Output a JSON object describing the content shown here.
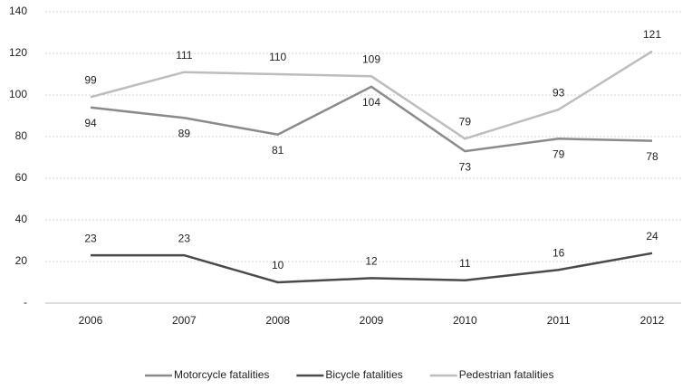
{
  "chart_data": {
    "type": "line",
    "categories": [
      "2006",
      "2007",
      "2008",
      "2009",
      "2010",
      "2011",
      "2012"
    ],
    "series": [
      {
        "name": "Motorcycle fatalities",
        "color": "#8a8a8a",
        "values": [
          94,
          89,
          81,
          104,
          73,
          79,
          78
        ]
      },
      {
        "name": "Bicycle fatalities",
        "color": "#4a4a4a",
        "values": [
          23,
          23,
          10,
          12,
          11,
          16,
          24
        ]
      },
      {
        "name": "Pedestrian fatalities",
        "color": "#bdbdbd",
        "values": [
          99,
          111,
          110,
          109,
          79,
          93,
          121
        ]
      }
    ],
    "ylim": [
      0,
      140
    ],
    "yticks": [
      {
        "value": 0,
        "label": "-"
      },
      20,
      40,
      60,
      80,
      100,
      120,
      140
    ],
    "grid": true,
    "legend": "bottom"
  }
}
